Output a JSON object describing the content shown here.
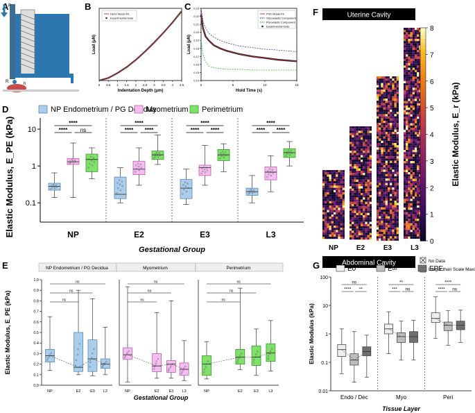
{
  "colors": {
    "endo": "#a9cdea",
    "endo_line": "#4a7ab0",
    "myo": "#f5bdf0",
    "myo_line": "#b0509f",
    "peri": "#7fe06a",
    "peri_line": "#2f8a22",
    "e0": "#eeeeee",
    "einf": "#bdbdbd",
    "epe": "#6f6f6f",
    "fit_red": "#c0303a",
    "visco": "#3b3bb0",
    "poro": "#31b331",
    "device": "#2d77b0"
  },
  "panel_labels": {
    "a": "A",
    "b": "B",
    "c": "C",
    "d": "D",
    "e": "E",
    "f": "F",
    "g": "G"
  },
  "panel_a": {
    "force_label": "F",
    "radius_label": "R",
    "height_label": "h"
  },
  "chart_data": [
    {
      "id": "B",
      "type": "line",
      "title": "",
      "xlabel": "Indentation Depth (μm)",
      "ylabel": "Load (μN)",
      "xlim": [
        0,
        4.5
      ],
      "x_ticks": [
        "0",
        "0.5",
        "1",
        "1.5",
        "2",
        "2.5",
        "3",
        "3.5",
        "4",
        "4.5"
      ],
      "legend": [
        "Hertz Model Fit",
        "Experimental Data"
      ],
      "series": [
        {
          "name": "Hertz Model Fit",
          "x": [
            0,
            0.5,
            1,
            1.5,
            2,
            2.5,
            3,
            3.5,
            4,
            4.5
          ],
          "y": [
            0,
            0.011,
            0.032,
            0.058,
            0.089,
            0.125,
            0.164,
            0.206,
            0.251,
            0.3
          ]
        }
      ]
    },
    {
      "id": "C",
      "type": "line",
      "title": "",
      "xlabel": "Hold Time (s)",
      "ylabel": "Load (μN)",
      "xlim": [
        0,
        15
      ],
      "ylim": [
        0.14,
        0.23
      ],
      "x_ticks": [
        "0",
        "5",
        "10",
        "15"
      ],
      "y_ticks": [
        "0.14",
        "0.15",
        "0.16",
        "0.17",
        "0.18",
        "0.19",
        "0.20",
        "0.21",
        "0.22",
        "0.23"
      ],
      "legend": [
        "PVE Model Fit",
        "Viscoelastic Component",
        "Poroelastic Component",
        "Experimental Data"
      ],
      "series": [
        {
          "name": "PVE Model Fit",
          "x": [
            0,
            0.3,
            0.7,
            1.2,
            2,
            3,
            4,
            5,
            6,
            8,
            10,
            12,
            15
          ],
          "y": [
            0.222,
            0.205,
            0.195,
            0.19,
            0.184,
            0.18,
            0.177,
            0.175,
            0.173,
            0.17,
            0.168,
            0.166,
            0.164
          ]
        },
        {
          "name": "Viscoelastic Component",
          "x": [
            0,
            0.3,
            0.7,
            1.2,
            2,
            3,
            4,
            5,
            6,
            8,
            10,
            12,
            15
          ],
          "y": [
            0.23,
            0.214,
            0.205,
            0.199,
            0.194,
            0.19,
            0.187,
            0.185,
            0.183,
            0.181,
            0.179,
            0.178,
            0.176
          ]
        },
        {
          "name": "Poroelastic Component",
          "x": [
            0,
            0.3,
            0.7,
            1.2,
            2,
            3,
            4,
            5,
            6,
            8,
            10,
            12,
            15
          ],
          "y": [
            0.19,
            0.172,
            0.164,
            0.158,
            0.156,
            0.155,
            0.154,
            0.154,
            0.154,
            0.153,
            0.153,
            0.153,
            0.153
          ]
        }
      ]
    },
    {
      "id": "D",
      "type": "box",
      "xlabel": "Gestational Group",
      "ylabel": "Elastic Modulus, E_PE (kPa)",
      "y_scale": "log",
      "ylim": [
        0.03,
        20
      ],
      "y_ticks": [
        {
          "v": 0.1,
          "label": "0.1"
        },
        {
          "v": 1,
          "label": "1"
        },
        {
          "v": 10,
          "label": "10"
        }
      ],
      "categories": [
        "NP",
        "E2",
        "E3",
        "L3"
      ],
      "legend": [
        "NP Endometrium / PG Decidua",
        "Myometrium",
        "Perimetrium"
      ],
      "series": [
        {
          "name": "Endometrium",
          "boxes": [
            [
              0.14,
              0.22,
              0.28,
              0.34,
              0.65
            ],
            [
              0.1,
              0.13,
              0.17,
              0.5,
              0.9
            ],
            [
              0.09,
              0.13,
              0.25,
              0.43,
              0.82
            ],
            [
              0.1,
              0.16,
              0.2,
              0.25,
              0.55
            ]
          ]
        },
        {
          "name": "Myometrium",
          "boxes": [
            [
              0.14,
              1.1,
              1.3,
              1.6,
              4.2
            ],
            [
              0.3,
              0.58,
              0.82,
              1.35,
              3.1
            ],
            [
              0.3,
              0.55,
              0.9,
              1.05,
              3.6
            ],
            [
              0.2,
              0.42,
              0.68,
              0.95,
              1.9
            ]
          ]
        },
        {
          "name": "Perimetrium",
          "boxes": [
            [
              0.45,
              0.7,
              1.5,
              2.1,
              3.1
            ],
            [
              1.1,
              1.5,
              2.0,
              2.55,
              6.9
            ],
            [
              0.7,
              1.4,
              2.0,
              2.8,
              4.0
            ],
            [
              1.0,
              1.7,
              2.3,
              2.95,
              4.6
            ]
          ]
        }
      ],
      "significance": [
        [
          "****",
          "****",
          "ns"
        ],
        [
          "****",
          "****",
          "****"
        ],
        [
          "****",
          "****",
          "****"
        ],
        [
          "****",
          "****",
          "****"
        ]
      ]
    },
    {
      "id": "E",
      "type": "box",
      "xlabel": "Gestational Group",
      "ylabel": "Elastic Modulus, E_PE (kPa)",
      "ylim": [
        0,
        1.0
      ],
      "y_ticks": [
        "0.0",
        "0.1",
        "0.2",
        "0.3",
        "0.4",
        "0.5",
        "0.6",
        "0.7",
        "0.8",
        "0.9",
        "1.0"
      ],
      "categories": [
        "NP",
        "E2",
        "E3",
        "L3"
      ],
      "panels": [
        {
          "title": "NP Endometrium / PG Decidua",
          "tissue": "endo",
          "boxes": [
            [
              0.14,
              0.22,
              0.28,
              0.34,
              0.65
            ],
            [
              0.1,
              0.13,
              0.17,
              0.5,
              0.9
            ],
            [
              0.09,
              0.13,
              0.25,
              0.43,
              0.82
            ],
            [
              0.1,
              0.16,
              0.2,
              0.25,
              0.55
            ]
          ],
          "ns": [
            "ns",
            "ns",
            "ns"
          ]
        },
        {
          "title": "Myometrium",
          "tissue": "myo",
          "boxes": [
            [
              0.14,
              1.1,
              1.3,
              1.6,
              4.2
            ],
            [
              0.3,
              0.58,
              0.82,
              1.35,
              3.1
            ],
            [
              0.3,
              0.55,
              0.9,
              1.05,
              3.6
            ],
            [
              0.2,
              0.42,
              0.68,
              0.95,
              1.9
            ]
          ],
          "ns": [
            "ns",
            "ns",
            "ns"
          ]
        },
        {
          "title": "Perimetrium",
          "tissue": "peri",
          "boxes": [
            [
              0.45,
              0.7,
              1.5,
              2.1,
              3.1
            ],
            [
              1.1,
              1.5,
              2.0,
              2.55,
              6.9
            ],
            [
              0.7,
              1.4,
              2.0,
              2.8,
              4.0
            ],
            [
              1.0,
              1.7,
              2.3,
              2.95,
              4.6
            ]
          ],
          "ns": [
            "ns",
            "ns",
            "ns"
          ]
        }
      ],
      "panel_y_ranges": [
        [
          0,
          1.0
        ],
        [
          0,
          4.5
        ],
        [
          0,
          7.5
        ]
      ]
    },
    {
      "id": "F",
      "type": "heatmap",
      "top_label": "Uterine Cavity",
      "bottom_label": "Abdominal Cavity",
      "columns": [
        "NP",
        "E2",
        "E3",
        "L3"
      ],
      "colorbar_title": "Elastic Modulus, E_r (kPa)",
      "colorbar_ticks": [
        "0",
        "1",
        "2",
        "3",
        "4",
        "5",
        "6",
        "7",
        "8"
      ],
      "legend": [
        "No Data",
        "Larger than Scale Maximum"
      ]
    },
    {
      "id": "G",
      "type": "box",
      "xlabel": "Tissue Layer",
      "ylabel": "Elastic Modulus (kPa)",
      "y_scale": "log",
      "ylim": [
        0.01,
        100
      ],
      "y_ticks": [
        {
          "v": 0.01,
          "label": "0.01"
        },
        {
          "v": 0.1,
          "label": "0.1"
        },
        {
          "v": 1,
          "label": "1"
        },
        {
          "v": 10,
          "label": "10"
        },
        {
          "v": 100,
          "label": "100"
        }
      ],
      "categories": [
        "Endo / Dec",
        "Myo",
        "Peri"
      ],
      "legend": [
        "E0",
        "E∞",
        "EPE"
      ],
      "series": [
        {
          "name": "E0",
          "boxes": [
            [
              0.04,
              0.16,
              0.28,
              0.42,
              1.5
            ],
            [
              0.2,
              1.0,
              1.5,
              2.2,
              6.0
            ],
            [
              0.7,
              2.5,
              3.5,
              5.5,
              20
            ]
          ]
        },
        {
          "name": "E∞",
          "boxes": [
            [
              0.02,
              0.08,
              0.12,
              0.2,
              1.2
            ],
            [
              0.12,
              0.5,
              0.8,
              1.1,
              2.8
            ],
            [
              0.4,
              1.3,
              2.0,
              2.6,
              6.5
            ]
          ]
        },
        {
          "name": "EPE",
          "boxes": [
            [
              0.03,
              0.17,
              0.24,
              0.35,
              0.9
            ],
            [
              0.12,
              0.5,
              0.8,
              1.2,
              3.0
            ],
            [
              0.5,
              1.4,
              2.0,
              2.8,
              6.8
            ]
          ]
        }
      ],
      "significance": [
        [
          "ns",
          "****",
          "**"
        ],
        [
          "**",
          "***",
          "ns"
        ],
        [
          "****",
          "****",
          "ns"
        ]
      ]
    }
  ]
}
